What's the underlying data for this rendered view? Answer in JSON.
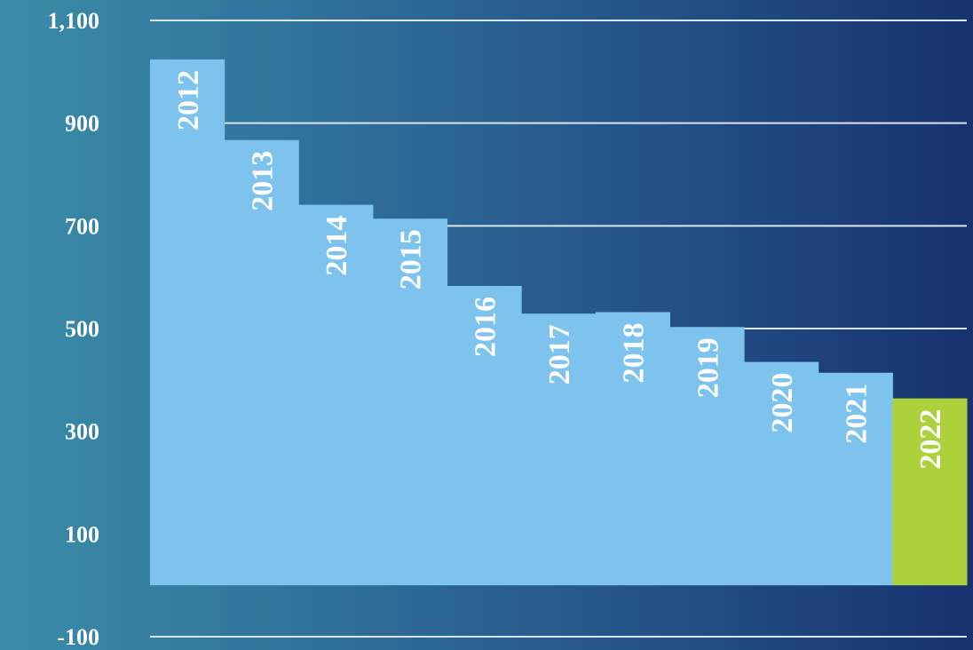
{
  "chart_data": {
    "type": "bar",
    "categories": [
      "2012",
      "2013",
      "2014",
      "2015",
      "2016",
      "2017",
      "2018",
      "2019",
      "2020",
      "2021",
      "2022"
    ],
    "values": [
      1024,
      867,
      741,
      714,
      583,
      529,
      532,
      503,
      435,
      414,
      364
    ],
    "ylim": [
      -100,
      1100
    ],
    "y_ticks": [
      -100,
      100,
      300,
      500,
      700,
      900,
      1100
    ],
    "y_tick_labels": [
      "-100",
      "100",
      "300",
      "500",
      "700",
      "900",
      "1,100"
    ],
    "grid": true,
    "colors": {
      "bar": "#7dc3ed",
      "highlight_bar": "#acd13a",
      "grid": "#d9e6f2",
      "text": "#ffffff"
    },
    "highlight_category": "2022"
  }
}
